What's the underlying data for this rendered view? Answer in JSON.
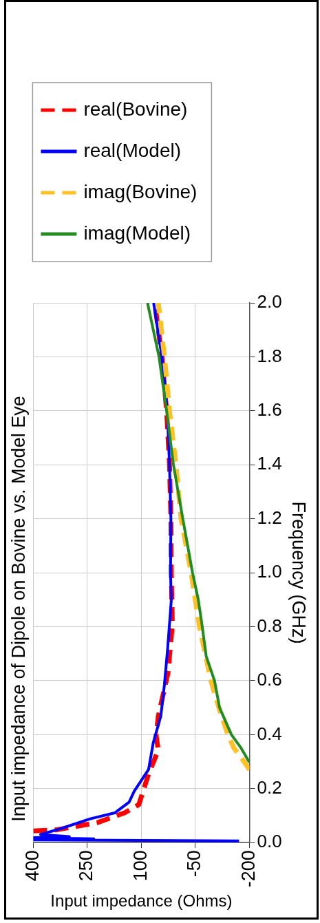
{
  "chart_data": {
    "type": "line",
    "title": "Input impedance of Dipole on Bovine vs. Model Eye",
    "xlabel": "Input impedance (Ohms)",
    "ylabel": "Frequency (GHz)",
    "xlim": [
      400,
      -200
    ],
    "xticks": [
      400,
      250,
      100,
      -50,
      -200
    ],
    "ylim": [
      0,
      2
    ],
    "yticks": [
      {
        "value": 0,
        "label": "0.0"
      },
      0.2,
      0.4,
      0.6,
      0.8,
      {
        "value": 1,
        "label": "1.0"
      },
      1.2,
      1.4,
      1.6,
      1.8,
      {
        "value": 2,
        "label": "2.0"
      }
    ],
    "grid": true,
    "legend": "top",
    "marker": "none",
    "series": [
      {
        "name": "real(Bovine)",
        "color": "#ff0000",
        "line_style": "dashed",
        "values": [
          0.043,
          0.047,
          0.074,
          0.11,
          0.141,
          0.2,
          0.254,
          0.343,
          0.396,
          0.469,
          0.63,
          0.808,
          1.0,
          1.2,
          1.4,
          1.6,
          1.8,
          2.0
        ],
        "x": [
          400,
          337,
          222,
          147,
          107,
          93,
          80,
          53,
          59,
          53,
          26,
          14,
          17,
          18,
          22,
          30,
          43,
          63
        ]
      },
      {
        "name": "real(Model)",
        "color": "#0000ff",
        "line_style": "solid",
        "values": [
          0.006,
          0.01,
          0.014,
          0.018,
          0.022,
          0.03,
          0.052,
          0.088,
          0.11,
          0.15,
          0.19,
          0.271,
          0.37,
          0.469,
          0.585,
          0.72,
          0.897,
          1.0,
          1.2,
          1.4,
          1.6,
          1.8,
          2.0
        ],
        "x": [
          -171,
          400,
          232,
          400,
          300,
          380,
          323,
          242,
          174,
          134,
          120,
          80,
          67,
          46,
          36,
          27,
          17,
          19,
          18,
          22,
          28,
          43,
          66
        ]
      },
      {
        "name": "imag(Bovine)",
        "color": "#ffc125",
        "line_style": "dashed",
        "values": [
          0.27,
          0.3,
          0.35,
          0.4,
          0.5,
          0.6,
          0.8,
          1.0,
          1.2,
          1.4,
          1.6,
          1.8,
          2.0
        ],
        "x": [
          -200,
          -185,
          -157,
          -140,
          -115,
          -93,
          -61,
          -38,
          -10,
          4,
          22,
          36,
          53
        ]
      },
      {
        "name": "imag(Model)",
        "color": "#228b22",
        "line_style": "solid",
        "values": [
          0.297,
          0.35,
          0.4,
          0.5,
          0.6,
          0.69,
          0.8,
          0.9,
          1.0,
          1.2,
          1.4,
          1.6,
          1.8,
          2.0
        ],
        "x": [
          -200,
          -177,
          -150,
          -117,
          -103,
          -80,
          -69,
          -58,
          -42,
          -15,
          11,
          30,
          51,
          83
        ]
      }
    ]
  }
}
